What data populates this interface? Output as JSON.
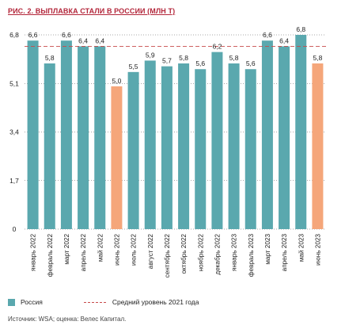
{
  "figure": {
    "title": "РИС. 2. ВЫПЛАВКА СТАЛИ В РОССИИ (МЛН Т)",
    "source": "Источник: WSA; оценка: Велес Капитал."
  },
  "legend": {
    "series_label": "Россия",
    "avg_label": "Средний уровень 2021 года"
  },
  "colors": {
    "bar": "#5aa8ae",
    "bar_highlight": "#f5a67a",
    "avg_line": "#c84a4a",
    "grid": "#555555",
    "title": "#b3263a"
  },
  "chart_data": {
    "type": "bar",
    "title": "РИС. 2. ВЫПЛАВКА СТАЛИ В РОССИИ (МЛН Т)",
    "categories": [
      "январь 2022",
      "февраль 2022",
      "март 2022",
      "апрель 2022",
      "май 2022",
      "июнь 2022",
      "июль 2022",
      "август 2022",
      "сентябрь 2022",
      "октябрь 2022",
      "ноябрь 2022",
      "декабрь 2022",
      "январь 2023",
      "февраль 2023",
      "март 2023",
      "апрель 2023",
      "май 2023",
      "июнь 2023"
    ],
    "series": [
      {
        "name": "Россия",
        "values": [
          6.6,
          5.8,
          6.6,
          6.4,
          6.4,
          5.0,
          5.5,
          5.9,
          5.7,
          5.8,
          5.6,
          6.2,
          5.8,
          5.6,
          6.6,
          6.4,
          6.8,
          5.8
        ]
      }
    ],
    "value_labels": [
      "6,6",
      "5,8",
      "6,6",
      "6,4",
      "6,4",
      "5,0",
      "5,5",
      "5,9",
      "5,7",
      "5,8",
      "5,6",
      "6,2",
      "5,8",
      "5,6",
      "6,6",
      "6,4",
      "6,8",
      "5,8"
    ],
    "highlighted": [
      "июнь 2022",
      "июнь 2023"
    ],
    "reference_line": {
      "name": "Средний уровень 2021 года",
      "value": 6.4
    },
    "yticks": [
      0,
      1.7,
      3.4,
      5.1,
      6.8
    ],
    "ytick_labels": [
      "0",
      "1,7",
      "3,4",
      "5,1",
      "6,8"
    ],
    "ylim": [
      0,
      6.8
    ],
    "grid": "dotted horizontal",
    "legend_position": "bottom"
  }
}
